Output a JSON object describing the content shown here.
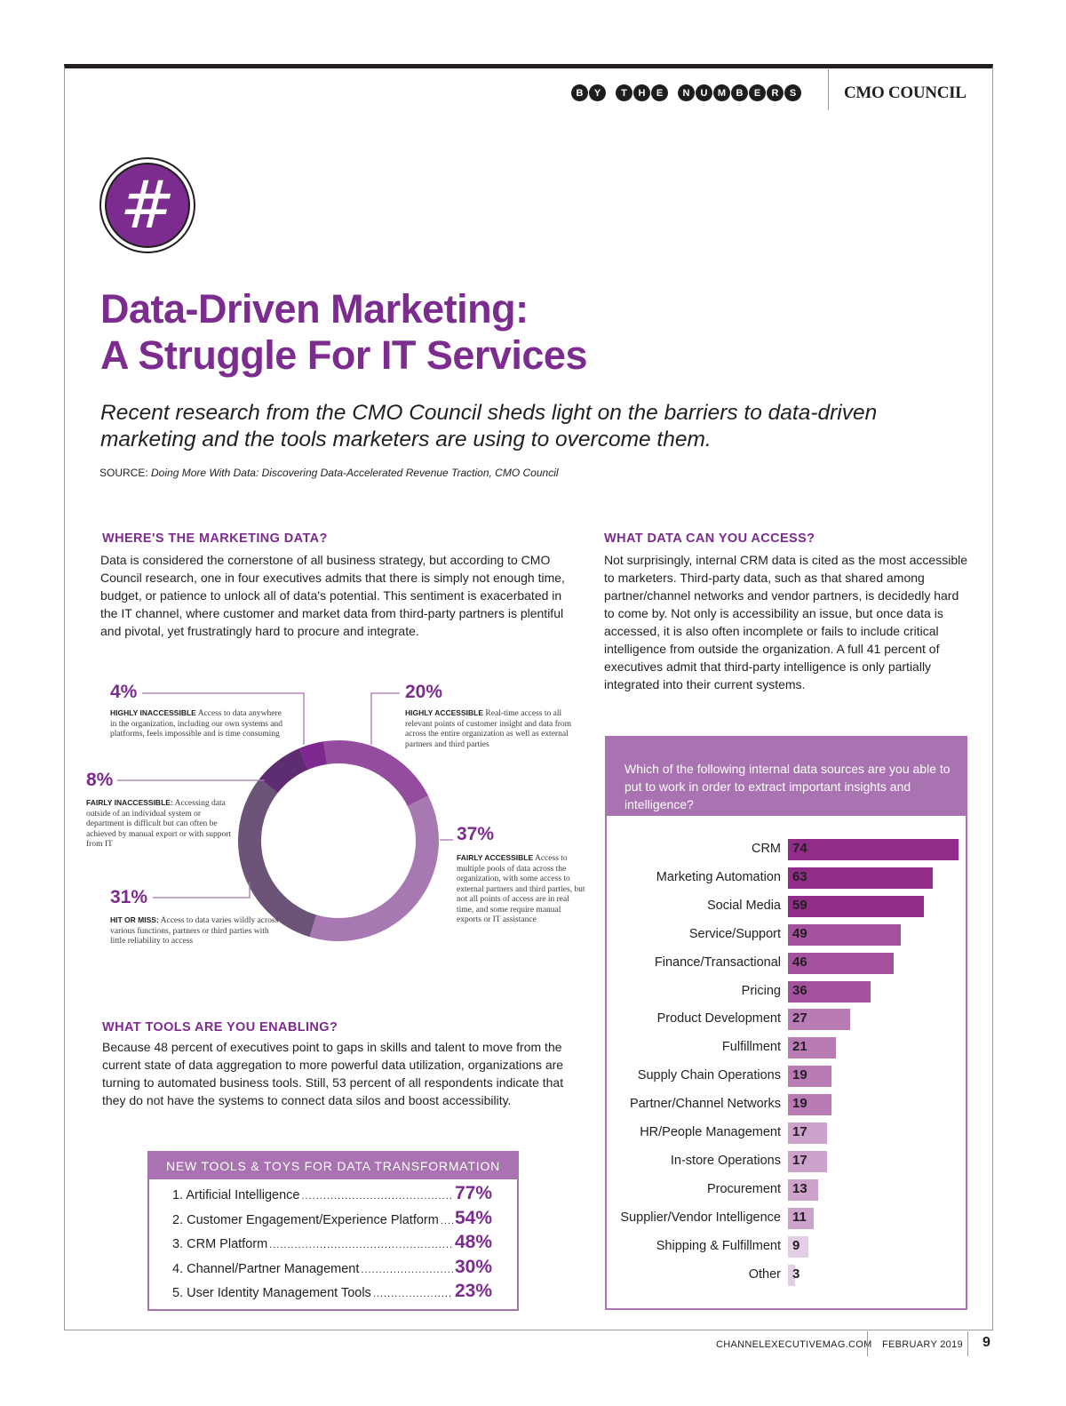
{
  "header": {
    "tagline_words": [
      "BY",
      "THE",
      "NUMBERS"
    ],
    "brand": "CMO COUNCIL"
  },
  "icon": {
    "name": "hashtag-icon",
    "glyph": "#",
    "accent": "#7b2c8e"
  },
  "title": {
    "line1": "Data-Driven Marketing:",
    "line2": "A Struggle For IT Services"
  },
  "subtitle": "Recent research from the CMO Council sheds light on the barriers to data-driven marketing and the tools marketers are using to overcome them.",
  "source": {
    "prefix": "SOURCE: ",
    "text": "Doing More With Data: Discovering Data-Accelerated Revenue Traction, CMO Council"
  },
  "sections": {
    "where": {
      "heading": "WHERE'S THE MARKETING DATA?",
      "body": "Data is considered the cornerstone of all business strategy, but according to CMO Council research, one in four executives admits that there is simply not enough time, budget, or patience to unlock all of data's potential. This sentiment is exacerbated in the IT channel, where customer and market data from third-party partners is plentiful and pivotal, yet frustratingly hard to procure and integrate."
    },
    "access": {
      "heading": "WHAT DATA CAN YOU ACCESS?",
      "body": "Not surprisingly, internal CRM data is cited as the most accessible to marketers.  Third-party data, such as that shared among partner/channel networks and vendor partners, is decidedly hard to come by. Not only is accessibility an issue, but once data is accessed, it is also often incomplete or fails to include critical intelligence from outside the organization. A full 41 percent of executives admit that third-party intelligence is only partially integrated into their current systems."
    },
    "tools": {
      "heading": "WHAT TOOLS ARE YOU ENABLING?",
      "body": "Because 48 percent of executives point to gaps in skills and talent to move from the current state of data aggregation to more powerful data utilization, organizations are turning to automated business tools. Still, 53 percent of all respondents indicate that they do not have the systems to connect data silos and boost accessibility."
    }
  },
  "colors": {
    "accent": "#7b2c8e",
    "panel": "#a873b0",
    "text": "#231f20"
  },
  "chart_data": [
    {
      "type": "pie",
      "variant": "donut",
      "title": "Data accessibility",
      "slices": [
        {
          "label": "HIGHLY ACCESSIBLE",
          "pct_text": "20%",
          "value": 20,
          "color": "#934c9e",
          "description": "Real-time access to all relevant points of customer insight and data from across the entire organization as well as external partners and third parties"
        },
        {
          "label": "FAIRLY ACCESSIBLE",
          "pct_text": "37%",
          "value": 37,
          "color": "#a878b2",
          "description": "Access to multiple pools of data across the organization, with some access to external partners and third parties, but not all points of access are in real time, and some require manual exports or IT assistance"
        },
        {
          "label": "HIT OR MISS:",
          "pct_text": "31%",
          "value": 31,
          "color": "#6b5478",
          "description": "Access to data varies wildly across various functions, partners or third parties with little reliability to access"
        },
        {
          "label": "FAIRLY INACCESSIBLE:",
          "pct_text": "8%",
          "value": 8,
          "color": "#5e2c70",
          "description": "Accessing data outside of an individual system or department is difficult but can often be achieved by manual export or with support from IT"
        },
        {
          "label": "HIGHLY INACCESSIBLE",
          "pct_text": "4%",
          "value": 4,
          "color": "#7e2890",
          "description": "Access to data anywhere in the organization, including our own systems and platforms, feels impossible and is time consuming"
        }
      ]
    },
    {
      "type": "bar",
      "orientation": "horizontal",
      "title": "Which of the following internal data sources are you able to put to work in order to extract important insights and intelligence?",
      "categories": [
        "CRM",
        "Marketing Automation",
        "Social Media",
        "Service/Support",
        "Finance/Transactional",
        "Pricing",
        "Product Development",
        "Fulfillment",
        "Supply Chain Operations",
        "Partner/Channel Networks",
        "HR/People Management",
        "In-store Operations",
        "Procurement",
        "Supplier/Vendor Intelligence",
        "Shipping & Fulfillment",
        "Other"
      ],
      "values": [
        74,
        63,
        59,
        49,
        46,
        36,
        27,
        21,
        19,
        19,
        17,
        17,
        13,
        11,
        9,
        3
      ],
      "colors": [
        "#922c8a",
        "#922c8a",
        "#922c8a",
        "#a4529d",
        "#a4529d",
        "#a4529d",
        "#b87bb5",
        "#b87bb5",
        "#b87bb5",
        "#b87bb5",
        "#cda3cd",
        "#cda3cd",
        "#cda3cd",
        "#cda3cd",
        "#e3cfe5",
        "#e3cfe5"
      ],
      "xlim": [
        0,
        74
      ]
    },
    {
      "type": "table",
      "title": "NEW TOOLS & TOYS FOR DATA TRANSFORMATION",
      "rows": [
        {
          "rank": "1.",
          "label": "Artificial Intelligence",
          "value": "77%"
        },
        {
          "rank": "2.",
          "label": "Customer Engagement/Experience Platform",
          "value": "54%"
        },
        {
          "rank": "3.",
          "label": "CRM Platform",
          "value": "48%"
        },
        {
          "rank": "4.",
          "label": "Channel/Partner Management",
          "value": "30%"
        },
        {
          "rank": "5.",
          "label": "User Identity Management Tools",
          "value": "23%"
        }
      ]
    }
  ],
  "footer": {
    "site": "CHANNELEXECUTIVEMAG.COM",
    "date": "FEBRUARY 2019",
    "page": "9"
  }
}
